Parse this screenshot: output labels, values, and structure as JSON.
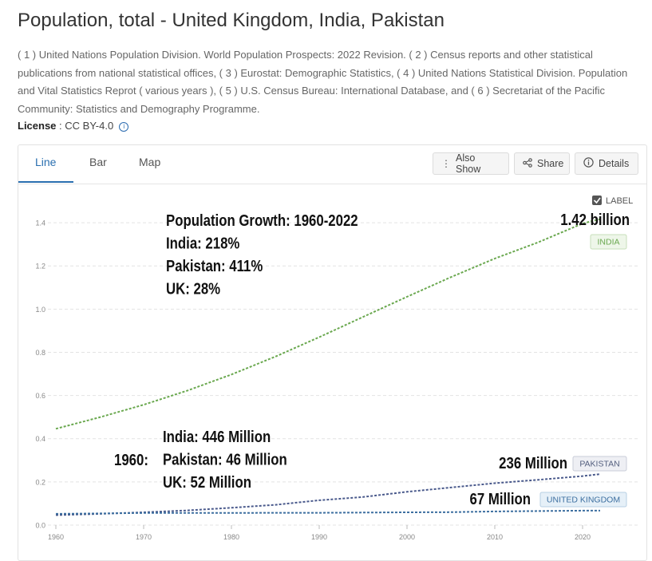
{
  "page": {
    "title": "Population, total - United Kingdom, India, Pakistan",
    "source": "( 1 ) United Nations Population Division. World Population Prospects: 2022 Revision. ( 2 ) Census reports and other statistical publications from national statistical offices, ( 3 ) Eurostat: Demographic Statistics, ( 4 ) United Nations Statistical Division. Population and Vital Statistics Reprot ( various years ), ( 5 ) U.S. Census Bureau: International Database, and ( 6 ) Secretariat of the Pacific Community: Statistics and Demography Programme.",
    "license_label": "License",
    "license_value": " : CC BY-4.0"
  },
  "tabs": [
    {
      "label": "Line"
    },
    {
      "label": "Bar"
    },
    {
      "label": "Map"
    }
  ],
  "toolbar": {
    "also_show": "Also Show",
    "share": "Share",
    "details": "Details"
  },
  "colors": {
    "india": "#6aa84f",
    "pakistan": "#4a5a8c",
    "uk": "#3d6fa0",
    "tab_active": "#2a6fb0",
    "grid": "#e3e3e3"
  },
  "chart_data": {
    "type": "line",
    "x": [
      1960,
      1965,
      1970,
      1975,
      1980,
      1985,
      1990,
      1995,
      2000,
      2005,
      2010,
      2015,
      2020,
      2022
    ],
    "series": [
      {
        "name": "INDIA",
        "color": "#6aa84f",
        "values": [
          0.446,
          0.499,
          0.557,
          0.623,
          0.697,
          0.78,
          0.87,
          0.964,
          1.057,
          1.148,
          1.234,
          1.31,
          1.396,
          1.417
        ]
      },
      {
        "name": "PAKISTAN",
        "color": "#4a5a8c",
        "values": [
          0.046,
          0.052,
          0.059,
          0.068,
          0.08,
          0.094,
          0.115,
          0.13,
          0.154,
          0.174,
          0.194,
          0.21,
          0.227,
          0.236
        ]
      },
      {
        "name": "UNITED KINGDOM",
        "color": "#3d6fa0",
        "values": [
          0.052,
          0.054,
          0.056,
          0.056,
          0.056,
          0.057,
          0.057,
          0.058,
          0.059,
          0.06,
          0.063,
          0.065,
          0.067,
          0.067
        ]
      }
    ],
    "ylim": [
      0,
      1.5
    ],
    "xlim": [
      1960,
      2022
    ],
    "y_ticks": [
      "0.0",
      "0.2",
      "0.4",
      "0.6",
      "0.8",
      "1.0",
      "1.2",
      "1.4"
    ],
    "x_ticks": [
      "1960",
      "1970",
      "1980",
      "1990",
      "2000",
      "2010",
      "2020"
    ],
    "grid": true,
    "label_toggle": "LABEL",
    "annotations": {
      "growth": [
        "Population Growth: 1960-2022",
        "India: 218%",
        "Pakistan: 411%",
        "UK: 28%"
      ],
      "y1960_label": "1960:",
      "y1960": [
        "India: 446 Million",
        "Pakistan: 46 Million",
        "UK: 52 Million"
      ],
      "india_end": "1.42 billion",
      "pakistan_end": "236 Million",
      "uk_end": "67 Million"
    }
  }
}
